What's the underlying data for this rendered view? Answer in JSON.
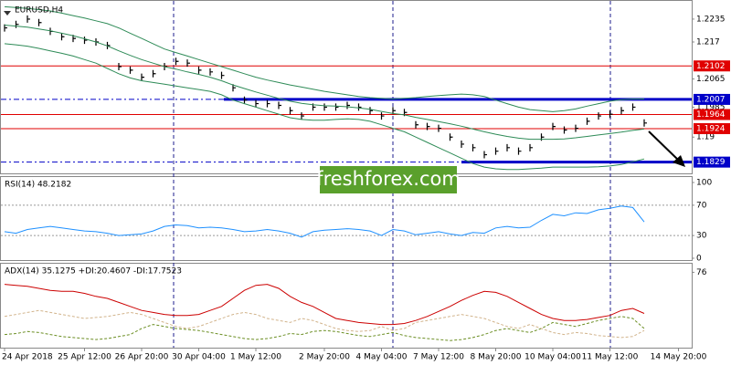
{
  "chart_data": [
    {
      "type": "price-bars",
      "title": "EURUSD,H4",
      "watermark": "freshforex.com",
      "categories": [
        "24 Apr 2018",
        null,
        null,
        null,
        null,
        null,
        null,
        "25 Apr 12:00",
        null,
        null,
        null,
        null,
        "26 Apr 20:00",
        null,
        null,
        null,
        null,
        "30 Apr 04:00",
        null,
        null,
        null,
        null,
        "1 May 12:00",
        null,
        null,
        null,
        null,
        null,
        "2 May 20:00",
        null,
        null,
        null,
        null,
        "4 May 04:00",
        null,
        null,
        null,
        null,
        "7 May 12:00",
        null,
        null,
        null,
        null,
        "8 May 20:00",
        null,
        null,
        null,
        null,
        "10 May 04:00",
        null,
        null,
        null,
        null,
        "11 May 12:00",
        null,
        null,
        null,
        null,
        null,
        "14 May 20:00"
      ],
      "ylim": [
        1.1797,
        1.2284
      ],
      "yticks": [
        1.2235,
        1.217,
        1.2065,
        1.1985,
        1.19
      ],
      "levels": [
        {
          "value": 1.2102,
          "color": "#e00000"
        },
        {
          "value": 1.2007,
          "color": "#0000c8"
        },
        {
          "value": 1.1964,
          "color": "#e00000"
        },
        {
          "value": 1.1924,
          "color": "#e00000"
        },
        {
          "value": 1.1829,
          "color": "#0000c8"
        }
      ],
      "series": [
        {
          "mark": "bar",
          "color": "#000000",
          "values": [
            1.221,
            1.222,
            1.2235,
            1.2225,
            1.22,
            1.2185,
            1.218,
            1.2175,
            1.217,
            1.216,
            1.21,
            1.209,
            1.207,
            1.208,
            1.21,
            1.2115,
            1.211,
            1.209,
            1.2085,
            1.2075,
            1.204,
            1.2005,
            1.1995,
            1.1995,
            1.199,
            1.1975,
            1.196,
            1.1985,
            1.1985,
            1.1985,
            1.199,
            1.1985,
            1.1975,
            1.196,
            1.1975,
            1.197,
            1.1935,
            1.193,
            1.1925,
            1.19,
            1.188,
            1.187,
            1.185,
            1.186,
            1.187,
            1.186,
            1.187,
            1.19,
            1.193,
            1.192,
            1.1925,
            1.1945,
            1.196,
            1.1965,
            1.1975,
            1.1985,
            1.194,
            null,
            null,
            null
          ]
        },
        {
          "mark": "line",
          "color": "#2e8b57",
          "values": [
            1.227,
            1.2268,
            1.2265,
            1.2262,
            1.2258,
            1.2252,
            1.2245,
            1.2238,
            1.223,
            1.2222,
            1.221,
            1.2195,
            1.218,
            1.2165,
            1.215,
            1.214,
            1.213,
            1.212,
            1.211,
            1.21,
            1.209,
            1.208,
            1.207,
            1.2062,
            1.2055,
            1.2048,
            1.2042,
            1.2036,
            1.203,
            1.2025,
            1.202,
            1.2015,
            1.2012,
            1.201,
            1.2008,
            1.201,
            1.2012,
            1.2015,
            1.2018,
            1.202,
            1.2022,
            1.202,
            1.2015,
            1.2005,
            1.1995,
            1.1985,
            1.1978,
            1.1975,
            1.1972,
            1.1975,
            1.198,
            1.1988,
            1.1995,
            1.2002,
            1.2006,
            1.2008,
            1.2008,
            null,
            null,
            null
          ]
        },
        {
          "mark": "line",
          "color": "#2e8b57",
          "values": [
            1.2218,
            1.2215,
            1.2212,
            1.2207,
            1.2202,
            1.2195,
            1.2188,
            1.2179,
            1.217,
            1.2159,
            1.2145,
            1.2132,
            1.212,
            1.211,
            1.21,
            1.2093,
            1.2085,
            1.2078,
            1.207,
            1.206,
            1.2048,
            1.2038,
            1.2028,
            1.2019,
            1.201,
            1.2002,
            1.1996,
            1.1992,
            1.1989,
            1.1988,
            1.1986,
            1.1983,
            1.1979,
            1.1973,
            1.1967,
            1.1963,
            1.1956,
            1.195,
            1.1944,
            1.1938,
            1.1931,
            1.1923,
            1.1915,
            1.1908,
            1.1902,
            1.1897,
            1.1894,
            1.1894,
            1.1894,
            1.1895,
            1.1898,
            1.1902,
            1.1906,
            1.191,
            1.1914,
            1.1919,
            1.1923,
            null,
            null,
            null
          ]
        },
        {
          "mark": "line",
          "color": "#2e8b57",
          "values": [
            1.2165,
            1.2162,
            1.2158,
            1.2152,
            1.2145,
            1.2138,
            1.213,
            1.212,
            1.211,
            1.2095,
            1.208,
            1.2068,
            1.206,
            1.2055,
            1.205,
            1.2045,
            1.204,
            1.2035,
            1.203,
            1.202,
            1.2005,
            1.1995,
            1.1985,
            1.1975,
            1.1965,
            1.1955,
            1.195,
            1.1948,
            1.1948,
            1.195,
            1.1952,
            1.195,
            1.1945,
            1.1935,
            1.1925,
            1.1915,
            1.19,
            1.1885,
            1.187,
            1.1855,
            1.184,
            1.1825,
            1.1815,
            1.181,
            1.1808,
            1.1808,
            1.181,
            1.1812,
            1.1815,
            1.1815,
            1.1815,
            1.1815,
            1.1816,
            1.1818,
            1.1822,
            1.183,
            1.1838,
            null,
            null,
            null
          ]
        }
      ]
    },
    {
      "type": "line",
      "label": "RSI(14) 48.2182",
      "ylim": [
        0,
        100
      ],
      "yticks": [
        100,
        70,
        30,
        0
      ],
      "series": [
        {
          "mark": "line",
          "color": "#1e90ff",
          "values": [
            35,
            33,
            38,
            40,
            42,
            40,
            38,
            36,
            35,
            33,
            30,
            31,
            32,
            36,
            42,
            44,
            43,
            40,
            41,
            40,
            38,
            35,
            36,
            38,
            36,
            33,
            28,
            35,
            37,
            38,
            39,
            38,
            36,
            30,
            38,
            36,
            31,
            33,
            35,
            32,
            30,
            34,
            33,
            40,
            42,
            40,
            41,
            50,
            58,
            56,
            60,
            59,
            64,
            66,
            69,
            67,
            48,
            null,
            null,
            null
          ]
        }
      ]
    },
    {
      "type": "line",
      "label": "ADX(14) 35.1275 +DI:20.4607 -DI:17.7523",
      "ylim": [
        0,
        80
      ],
      "yticks": [
        76
      ],
      "series": [
        {
          "mark": "line",
          "color": "#cc0000",
          "values": [
            64,
            63,
            62,
            60,
            58,
            57,
            57,
            55,
            52,
            50,
            46,
            42,
            38,
            36,
            34,
            33,
            33,
            34,
            38,
            42,
            50,
            58,
            63,
            64,
            60,
            52,
            46,
            42,
            36,
            30,
            28,
            26,
            25,
            24,
            24,
            25,
            28,
            32,
            37,
            42,
            48,
            53,
            57,
            56,
            52,
            46,
            40,
            34,
            30,
            28,
            28,
            29,
            31,
            33,
            38,
            40,
            35,
            null,
            null,
            null
          ]
        },
        {
          "mark": "dash",
          "color": "#6b8e23",
          "values": [
            14,
            15,
            17,
            16,
            14,
            12,
            11,
            10,
            9,
            10,
            12,
            14,
            20,
            24,
            22,
            20,
            19,
            18,
            16,
            14,
            12,
            10,
            9,
            10,
            12,
            15,
            14,
            17,
            18,
            17,
            15,
            13,
            12,
            14,
            16,
            13,
            11,
            10,
            9,
            8,
            9,
            11,
            14,
            18,
            20,
            18,
            16,
            20,
            26,
            24,
            22,
            25,
            28,
            30,
            32,
            30,
            20,
            null,
            null,
            null
          ]
        },
        {
          "mark": "dash",
          "color": "#d2b48c",
          "values": [
            32,
            34,
            36,
            38,
            36,
            34,
            32,
            30,
            31,
            32,
            34,
            36,
            34,
            30,
            26,
            22,
            20,
            22,
            26,
            30,
            34,
            36,
            34,
            30,
            28,
            26,
            30,
            28,
            24,
            20,
            18,
            17,
            18,
            22,
            18,
            20,
            26,
            28,
            30,
            32,
            34,
            32,
            30,
            26,
            22,
            20,
            24,
            20,
            16,
            14,
            16,
            15,
            13,
            12,
            11,
            12,
            18,
            null,
            null,
            null
          ]
        }
      ]
    }
  ]
}
